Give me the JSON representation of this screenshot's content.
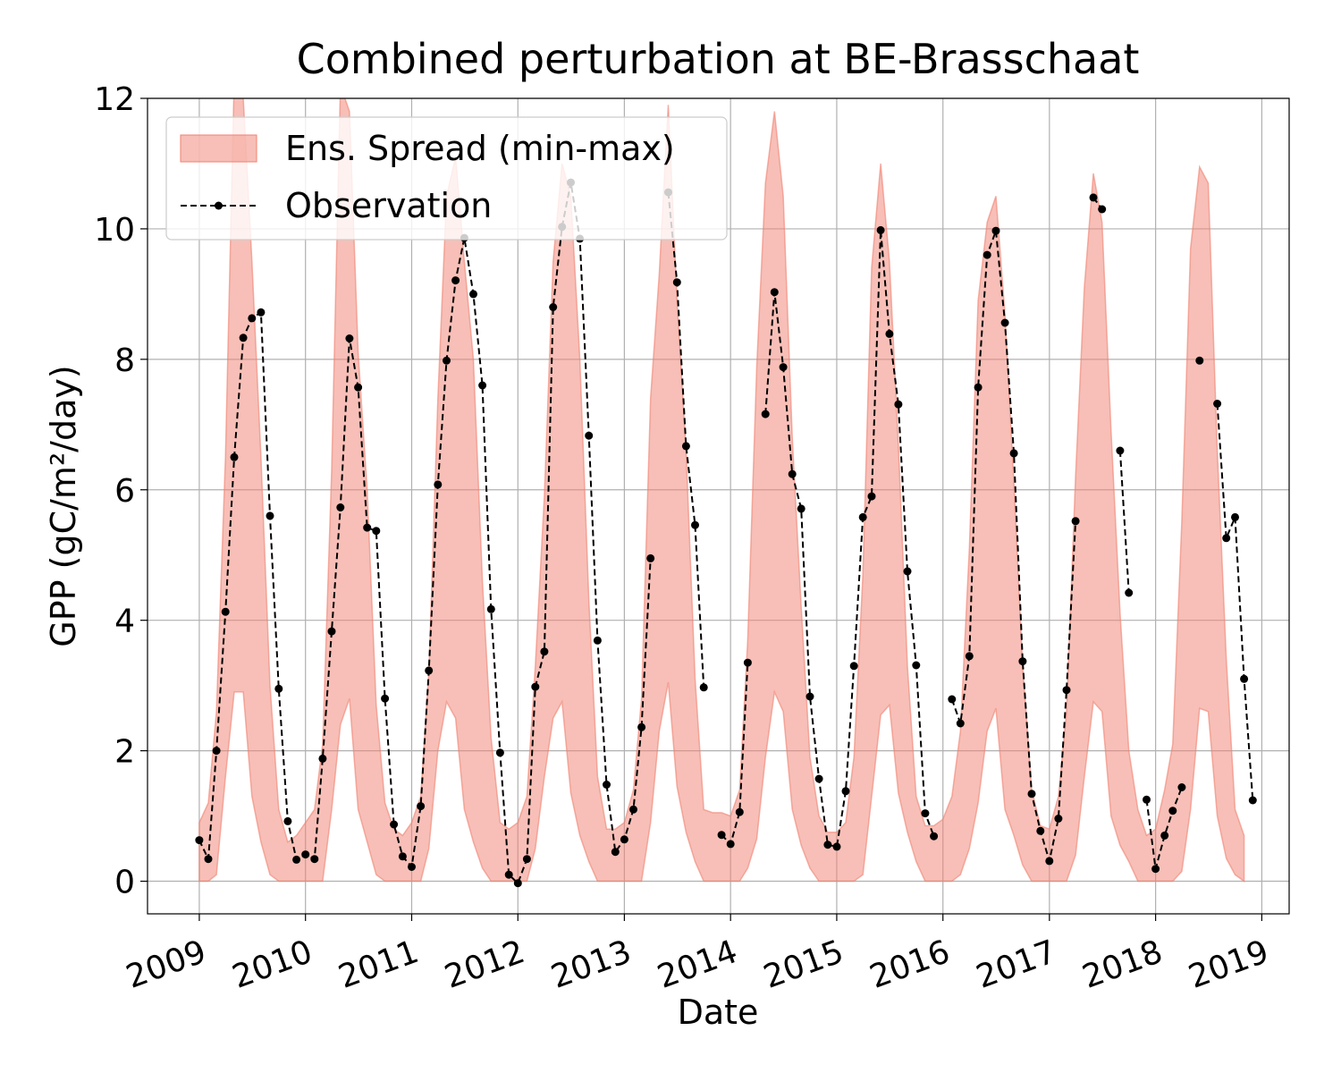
{
  "chart_data": {
    "type": "area",
    "title": "Combined perturbation at BE-Brasschaat",
    "xlabel": "Date",
    "ylabel": "GPP  (gC/m²/day)",
    "ylim": [
      -0.5,
      12
    ],
    "xlim": [
      "2008-07-07",
      "2019-04-05"
    ],
    "yticks": [
      0,
      2,
      4,
      6,
      8,
      10,
      12
    ],
    "xticks": [
      "2009",
      "2010",
      "2011",
      "2012",
      "2013",
      "2014",
      "2015",
      "2016",
      "2017",
      "2018",
      "2019"
    ],
    "grid": true,
    "legend_position": "top-left",
    "colors": {
      "spread_fill": "#f08070",
      "spread_alpha": 0.5,
      "observation": "#000000"
    },
    "series": [
      {
        "name": "Ens. Spread (min-max)",
        "type": "band",
        "x": [
          "2009-01-01",
          "2009-02-01",
          "2009-03-01",
          "2009-04-01",
          "2009-05-01",
          "2009-06-01",
          "2009-07-01",
          "2009-08-01",
          "2009-09-01",
          "2009-10-01",
          "2009-11-01",
          "2009-12-01",
          "2010-01-01",
          "2010-02-01",
          "2010-03-01",
          "2010-04-01",
          "2010-05-01",
          "2010-06-01",
          "2010-07-01",
          "2010-08-01",
          "2010-09-01",
          "2010-10-01",
          "2010-11-01",
          "2010-12-01",
          "2011-01-01",
          "2011-02-01",
          "2011-03-01",
          "2011-04-01",
          "2011-05-01",
          "2011-06-01",
          "2011-07-01",
          "2011-08-01",
          "2011-09-01",
          "2011-10-01",
          "2011-11-01",
          "2011-12-01",
          "2012-01-01",
          "2012-02-01",
          "2012-03-01",
          "2012-04-01",
          "2012-05-01",
          "2012-06-01",
          "2012-07-01",
          "2012-08-01",
          "2012-09-01",
          "2012-10-01",
          "2012-11-01",
          "2012-12-01",
          "2013-01-01",
          "2013-02-01",
          "2013-03-01",
          "2013-04-01",
          "2013-05-01",
          "2013-06-01",
          "2013-07-01",
          "2013-08-01",
          "2013-09-01",
          "2013-10-01",
          "2013-11-01",
          "2013-12-01",
          "2014-01-01",
          "2014-02-01",
          "2014-03-01",
          "2014-04-01",
          "2014-05-01",
          "2014-06-01",
          "2014-07-01",
          "2014-08-01",
          "2014-09-01",
          "2014-10-01",
          "2014-11-01",
          "2014-12-01",
          "2015-01-01",
          "2015-02-01",
          "2015-03-01",
          "2015-04-01",
          "2015-05-01",
          "2015-06-01",
          "2015-07-01",
          "2015-08-01",
          "2015-09-01",
          "2015-10-01",
          "2015-11-01",
          "2015-12-01",
          "2016-01-01",
          "2016-02-01",
          "2016-03-01",
          "2016-04-01",
          "2016-05-01",
          "2016-06-01",
          "2016-07-01",
          "2016-08-01",
          "2016-09-01",
          "2016-10-01",
          "2016-11-01",
          "2016-12-01",
          "2017-01-01",
          "2017-02-01",
          "2017-03-01",
          "2017-04-01",
          "2017-05-01",
          "2017-06-01",
          "2017-07-01",
          "2017-08-01",
          "2017-09-01",
          "2017-10-01",
          "2017-11-01",
          "2017-12-01",
          "2018-01-01",
          "2018-02-01",
          "2018-03-01",
          "2018-04-01",
          "2018-05-01",
          "2018-06-01",
          "2018-07-01",
          "2018-08-01",
          "2018-09-01",
          "2018-10-01",
          "2018-11-01"
        ],
        "min": [
          0,
          0,
          0.1,
          1.6,
          2.9,
          2.9,
          1.3,
          0.6,
          0.1,
          0,
          0,
          0,
          0,
          0,
          0,
          1.1,
          2.4,
          2.8,
          1.1,
          0.6,
          0.1,
          0,
          0,
          0,
          0,
          0,
          0.5,
          2,
          2.75,
          2.5,
          1.1,
          0.6,
          0.2,
          0,
          0,
          0,
          0,
          0,
          0.5,
          1.6,
          2.5,
          2.75,
          1.35,
          0.7,
          0.3,
          0,
          0,
          0,
          0,
          0,
          0,
          0.9,
          2.3,
          3.05,
          1.45,
          0.75,
          0.3,
          0,
          0,
          0,
          0,
          0,
          0.2,
          0.65,
          1.9,
          2.9,
          2.6,
          1.1,
          0.55,
          0.2,
          0,
          0,
          0,
          0,
          0,
          0.1,
          1.3,
          2.55,
          2.7,
          1.35,
          0.75,
          0.3,
          0,
          0,
          0,
          0,
          0.1,
          0.5,
          1.2,
          2.3,
          2.65,
          1.1,
          0.7,
          0.25,
          0,
          0,
          0,
          0,
          0,
          0.4,
          1.6,
          2.75,
          2.6,
          1.0,
          0.55,
          0.3,
          0,
          0,
          0,
          0,
          0,
          0.15,
          1.1,
          2.65,
          2.6,
          1.0,
          0.35,
          0.1,
          0
        ],
        "max": [
          0.9,
          1.2,
          2.6,
          6.5,
          12.3,
          12,
          9.5,
          6.5,
          3,
          1.1,
          0.6,
          0.7,
          0.9,
          1.1,
          2.1,
          6.3,
          12.2,
          11.8,
          8.1,
          6,
          2.7,
          1.2,
          0.8,
          0.7,
          0.9,
          1.3,
          3.2,
          7.4,
          10.5,
          11.1,
          9.5,
          8,
          4.6,
          2.2,
          0.9,
          0.8,
          0.9,
          1.3,
          3.3,
          5.9,
          9.5,
          11,
          10.5,
          8,
          4.3,
          1.6,
          0.8,
          0.8,
          0.9,
          1.4,
          2.8,
          7.4,
          9.3,
          11.9,
          8.9,
          6.6,
          3.1,
          1.1,
          1.05,
          1.05,
          1.0,
          1.4,
          3.7,
          7.9,
          10.7,
          11.8,
          10.5,
          6.8,
          4.2,
          1.9,
          1,
          0.75,
          0.75,
          0.9,
          1.9,
          4.7,
          9.4,
          11.0,
          9.5,
          6.7,
          3.3,
          1.3,
          0.85,
          0.85,
          0.95,
          1.3,
          2.3,
          5.1,
          8.9,
          10.1,
          10.5,
          8.7,
          6.1,
          3.3,
          1.4,
          0.85,
          0.8,
          1.3,
          2.6,
          6.2,
          9.1,
          10.85,
          10.1,
          6.9,
          4.1,
          2,
          1.1,
          0.7,
          0.8,
          1.4,
          2.1,
          5.5,
          9.7,
          10.95,
          10.7,
          6.6,
          3.4,
          1.1,
          0.7
        ]
      },
      {
        "name": "Observation",
        "type": "line-marker",
        "style": "dashed",
        "points": [
          [
            "2009-01-01",
            0.63
          ],
          [
            "2009-02-01",
            0.34
          ],
          [
            "2009-03-01",
            2.0
          ],
          [
            "2009-04-01",
            4.13
          ],
          [
            "2009-05-01",
            6.5
          ],
          [
            "2009-06-01",
            8.33
          ],
          [
            "2009-07-01",
            8.63
          ],
          [
            "2009-08-01",
            8.72
          ],
          [
            "2009-09-01",
            5.6
          ],
          [
            "2009-10-01",
            2.95
          ],
          [
            "2009-11-01",
            0.92
          ],
          [
            "2009-12-01",
            0.33
          ],
          [
            "2010-01-01",
            0.41
          ],
          [
            "2010-02-01",
            0.34
          ],
          [
            "2010-03-01",
            1.88
          ],
          [
            "2010-04-01",
            3.83
          ],
          [
            "2010-05-01",
            5.73
          ],
          [
            "2010-06-01",
            8.32
          ],
          [
            "2010-07-01",
            7.57
          ],
          [
            "2010-08-01",
            5.42
          ],
          [
            "2010-09-01",
            5.37
          ],
          [
            "2010-10-01",
            2.8
          ],
          [
            "2010-11-01",
            0.87
          ],
          [
            "2010-12-01",
            0.38
          ],
          [
            "2011-01-01",
            0.22
          ],
          [
            "2011-02-01",
            1.15
          ],
          [
            "2011-03-01",
            3.23
          ],
          [
            "2011-04-01",
            6.08
          ],
          [
            "2011-05-01",
            7.98
          ],
          [
            "2011-06-01",
            9.21
          ],
          [
            "2011-07-01",
            9.86
          ],
          [
            "2011-08-01",
            9.0
          ],
          [
            "2011-09-01",
            7.6
          ],
          [
            "2011-10-01",
            4.17
          ],
          [
            "2011-11-01",
            1.97
          ],
          [
            "2011-12-01",
            0.1
          ],
          [
            "2012-01-01",
            -0.03
          ],
          [
            "2012-02-01",
            0.34
          ],
          [
            "2012-03-01",
            2.98
          ],
          [
            "2012-04-01",
            3.52
          ],
          [
            "2012-05-01",
            8.8
          ],
          [
            "2012-06-01",
            10.03
          ],
          [
            "2012-07-01",
            10.71
          ],
          [
            "2012-08-01",
            9.85
          ],
          [
            "2012-09-01",
            6.83
          ],
          [
            "2012-10-01",
            3.69
          ],
          [
            "2012-11-01",
            1.48
          ],
          [
            "2012-12-01",
            0.45
          ],
          [
            "2013-01-01",
            0.64
          ],
          [
            "2013-02-01",
            1.1
          ],
          [
            "2013-03-01",
            2.36
          ],
          [
            "2013-04-01",
            4.95
          ],
          null,
          [
            "2013-06-01",
            10.56
          ],
          [
            "2013-07-01",
            9.18
          ],
          [
            "2013-08-01",
            6.67
          ],
          [
            "2013-09-01",
            5.46
          ],
          [
            "2013-10-01",
            2.97
          ],
          null,
          [
            "2013-12-01",
            0.71
          ],
          [
            "2014-01-01",
            0.57
          ],
          [
            "2014-02-01",
            1.06
          ],
          [
            "2014-03-01",
            3.35
          ],
          null,
          [
            "2014-05-01",
            7.16
          ],
          [
            "2014-06-01",
            9.03
          ],
          [
            "2014-07-01",
            7.88
          ],
          [
            "2014-08-01",
            6.24
          ],
          [
            "2014-09-01",
            5.71
          ],
          [
            "2014-10-01",
            2.83
          ],
          [
            "2014-11-01",
            1.57
          ],
          [
            "2014-12-01",
            0.56
          ],
          [
            "2015-01-01",
            0.53
          ],
          [
            "2015-02-01",
            1.38
          ],
          [
            "2015-03-01",
            3.3
          ],
          [
            "2015-04-01",
            5.58
          ],
          [
            "2015-05-01",
            5.9
          ],
          [
            "2015-06-01",
            9.98
          ],
          [
            "2015-07-01",
            8.39
          ],
          [
            "2015-08-01",
            7.31
          ],
          [
            "2015-09-01",
            4.75
          ],
          [
            "2015-10-01",
            3.31
          ],
          [
            "2015-11-01",
            1.04
          ],
          [
            "2015-12-01",
            0.69
          ],
          null,
          [
            "2016-02-01",
            2.79
          ],
          [
            "2016-03-01",
            2.42
          ],
          [
            "2016-04-01",
            3.45
          ],
          [
            "2016-05-01",
            7.57
          ],
          [
            "2016-06-01",
            9.6
          ],
          [
            "2016-07-01",
            9.97
          ],
          [
            "2016-08-01",
            8.56
          ],
          [
            "2016-09-01",
            6.56
          ],
          [
            "2016-10-01",
            3.37
          ],
          [
            "2016-11-01",
            1.34
          ],
          [
            "2016-12-01",
            0.77
          ],
          [
            "2017-01-01",
            0.31
          ],
          [
            "2017-02-01",
            0.96
          ],
          [
            "2017-03-01",
            2.93
          ],
          [
            "2017-04-01",
            5.52
          ],
          null,
          [
            "2017-06-01",
            10.48
          ],
          [
            "2017-07-01",
            10.3
          ],
          null,
          [
            "2017-09-01",
            6.6
          ],
          [
            "2017-10-01",
            4.42
          ],
          null,
          [
            "2017-12-01",
            1.25
          ],
          [
            "2018-01-01",
            0.19
          ],
          [
            "2018-02-01",
            0.7
          ],
          [
            "2018-03-01",
            1.08
          ],
          [
            "2018-04-01",
            1.44
          ],
          null,
          [
            "2018-06-01",
            7.98
          ],
          null,
          [
            "2018-08-01",
            7.32
          ],
          [
            "2018-09-01",
            5.26
          ],
          [
            "2018-10-01",
            5.58
          ],
          [
            "2018-11-01",
            3.1
          ],
          [
            "2018-12-01",
            1.24
          ]
        ]
      }
    ]
  }
}
